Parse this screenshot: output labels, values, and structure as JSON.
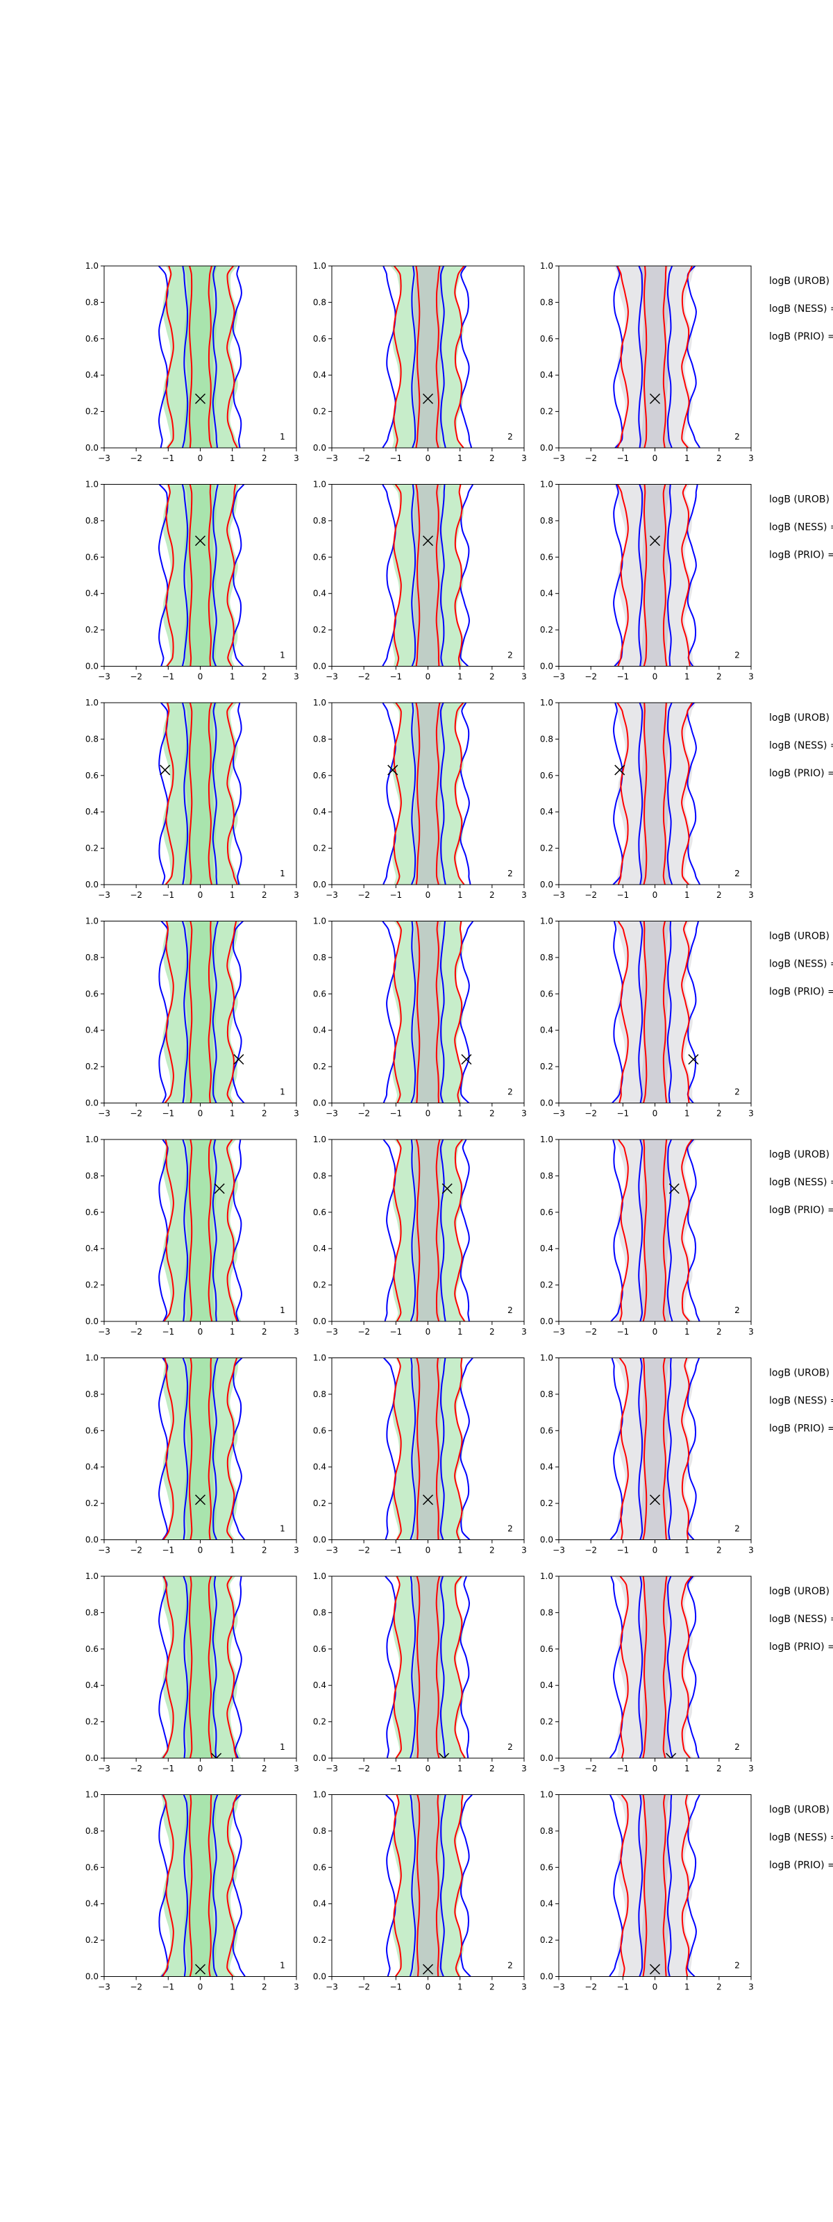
{
  "figure": {
    "columns": [
      "green",
      "ness",
      "prio"
    ],
    "side_label_templates": [
      "logB (UROB) =",
      "logB (NESS) =",
      "logB (PRIO) ="
    ]
  },
  "colors": {
    "green_fill": "#8fdc95",
    "gray_fill": "#b9b9c3",
    "blue": "#0000ff",
    "red": "#ff0000",
    "frame": "#000000",
    "marker": "#000000"
  },
  "chart_data": {
    "type": "contour",
    "layout": "8x3 grid of contour panels",
    "xlim": [
      -3,
      3
    ],
    "ylim": [
      0,
      1
    ],
    "xticks": [
      "−3",
      "−2",
      "−1",
      "0",
      "1",
      "2",
      "3"
    ],
    "yticks": [
      "0.0",
      "0.2",
      "0.4",
      "0.6",
      "0.8",
      "1.0"
    ],
    "marker": "x",
    "rows": [
      {
        "marker": [
          0.0,
          0.27
        ],
        "panel_labels": [
          "1",
          "2",
          "2"
        ],
        "logB_labels": [
          "logB (UROB) =",
          "logB (NESS) =",
          "logB (PRIO) ="
        ]
      },
      {
        "marker": [
          0.0,
          0.69
        ],
        "panel_labels": [
          "1",
          "2",
          "2"
        ],
        "logB_labels": [
          "logB (UROB) =",
          "logB (NESS) =",
          "logB (PRIO) ="
        ]
      },
      {
        "marker": [
          -1.1,
          0.63
        ],
        "panel_labels": [
          "1",
          "2",
          "2"
        ],
        "logB_labels": [
          "logB (UROB) =",
          "logB (NESS) =",
          "logB (PRIO) ="
        ]
      },
      {
        "marker": [
          1.2,
          0.24
        ],
        "panel_labels": [
          "1",
          "2",
          "2"
        ],
        "logB_labels": [
          "logB (UROB) =",
          "logB (NESS) =",
          "logB (PRIO) ="
        ]
      },
      {
        "marker": [
          0.6,
          0.73
        ],
        "panel_labels": [
          "1",
          "2",
          "2"
        ],
        "logB_labels": [
          "logB (UROB) =",
          "logB (NESS) =",
          "logB (PRIO) ="
        ]
      },
      {
        "marker": [
          0.0,
          0.22
        ],
        "panel_labels": [
          "1",
          "2",
          "2"
        ],
        "logB_labels": [
          "logB (UROB) =",
          "logB (NESS) =",
          "logB (PRIO) ="
        ]
      },
      {
        "marker": [
          0.5,
          0.0
        ],
        "panel_labels": [
          "1",
          "2",
          "2"
        ],
        "logB_labels": [
          "logB (UROB) =",
          "logB (NESS) =",
          "logB (PRIO) ="
        ]
      },
      {
        "marker": [
          0.0,
          0.04
        ],
        "panel_labels": [
          "1",
          "2",
          "2"
        ],
        "logB_labels": [
          "logB (UROB) =",
          "logB (NESS) =",
          "logB (PRIO) ="
        ]
      }
    ]
  }
}
